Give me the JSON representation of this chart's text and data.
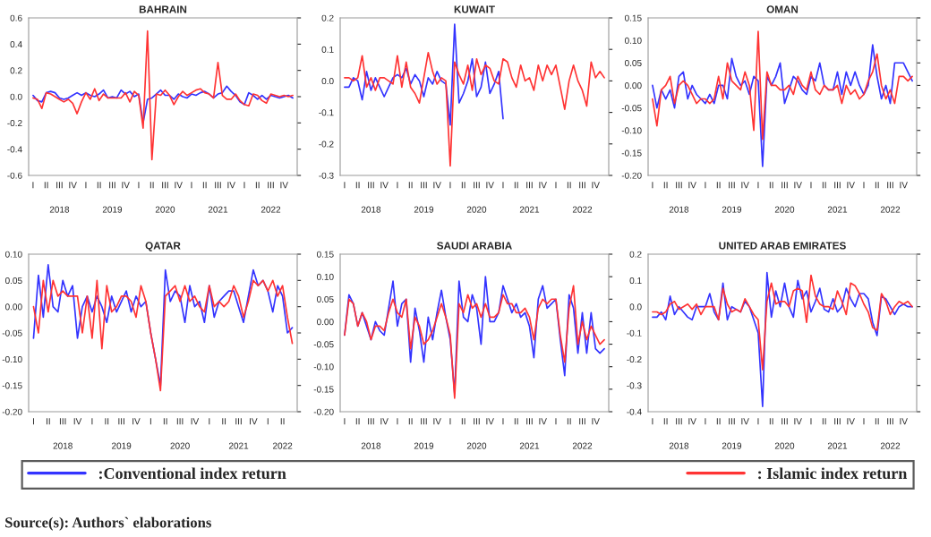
{
  "chart_data": [
    {
      "type": "line",
      "title": "BAHRAIN",
      "legend": "bottom",
      "categories": [
        "I",
        null,
        null,
        "II",
        null,
        null,
        "III\n\n2018",
        null,
        null,
        "IV",
        null,
        null,
        "I",
        null,
        null,
        "II",
        null,
        null,
        "III\n\n2019",
        null,
        null,
        "IV",
        null,
        null,
        "I",
        null,
        null,
        "II",
        null,
        null,
        "III\n\n2020",
        null,
        null,
        "IV",
        null,
        null,
        "I",
        null,
        null,
        "II",
        null,
        null,
        "III\n\n2021",
        null,
        null,
        "IV",
        null,
        null,
        "I",
        null,
        null,
        "II",
        null,
        null,
        "III\n\n2022",
        null,
        null,
        "IV",
        null,
        null
      ],
      "ylim": [
        -0.6,
        0.6
      ],
      "yticks": [
        {
          "value": -0.6,
          "label": "-0.6"
        },
        {
          "value": -0.4,
          "label": "-0.4"
        },
        {
          "value": -0.2,
          "label": "-0.2"
        },
        {
          "value": 0,
          "label": "0.0"
        },
        {
          "value": 0.2,
          "label": "0.2"
        },
        {
          "value": 0.4,
          "label": "0.4"
        },
        {
          "value": 0.6,
          "label": "0.6"
        }
      ],
      "series": [
        {
          "name": ":Conventional index return",
          "color": "#3333ff",
          "values": [
            0.01,
            -0.03,
            -0.04,
            0.03,
            0.04,
            0.03,
            -0.01,
            -0.02,
            -0.01,
            0.01,
            0.03,
            0.01,
            0.03,
            0.01,
            0.0,
            0.02,
            0.05,
            -0.01,
            0.0,
            -0.01,
            0.05,
            0.02,
            0.04,
            0.0,
            0.02,
            -0.2,
            -0.02,
            -0.01,
            0.02,
            0.05,
            0.01,
            0.01,
            -0.02,
            0.02,
            0.0,
            -0.01,
            0.02,
            0.01,
            0.03,
            0.04,
            0.02,
            -0.01,
            0.02,
            0.03,
            0.08,
            0.04,
            0.01,
            -0.04,
            -0.06,
            0.03,
            0.01,
            -0.02,
            0.01,
            -0.02,
            0.01,
            0.0,
            -0.01,
            0.0,
            0.01,
            -0.01
          ]
        },
        {
          "name": ": Islamic index return",
          "color": "#ff3333",
          "values": [
            -0.01,
            -0.02,
            -0.09,
            0.03,
            0.02,
            0.0,
            -0.02,
            -0.04,
            -0.02,
            -0.05,
            -0.13,
            -0.04,
            0.03,
            -0.02,
            0.06,
            -0.03,
            0.02,
            -0.01,
            -0.01,
            -0.01,
            -0.01,
            0.03,
            -0.04,
            0.04,
            0.01,
            -0.24,
            0.5,
            -0.48,
            0.02,
            0.01,
            0.05,
            0.01,
            -0.06,
            0.0,
            0.04,
            0.01,
            0.03,
            0.05,
            0.06,
            0.03,
            0.02,
            -0.01,
            0.26,
            0.01,
            -0.02,
            -0.02,
            0.02,
            -0.03,
            -0.06,
            -0.07,
            0.02,
            0.01,
            -0.03,
            -0.05,
            0.02,
            0.01,
            0.0,
            0.01,
            0.0,
            0.01
          ]
        }
      ]
    },
    {
      "type": "line",
      "title": "KUWAIT",
      "categories": [
        "I",
        null,
        null,
        "II",
        null,
        null,
        "III\n\n2018",
        null,
        null,
        "IV",
        null,
        null,
        "I",
        null,
        null,
        "II",
        null,
        null,
        "III\n\n2019",
        null,
        null,
        "IV",
        null,
        null,
        "I",
        null,
        null,
        "II",
        null,
        null,
        "III\n\n2020",
        null,
        null,
        "IV",
        null,
        null,
        "I",
        null,
        null,
        "II",
        null,
        null,
        "III\n\n2021",
        null,
        null,
        "IV",
        null,
        null,
        "I",
        null,
        null,
        "II",
        null,
        null,
        "III\n\n2022",
        null,
        null,
        "IV",
        null,
        null
      ],
      "ylim": [
        -0.3,
        0.2
      ],
      "yticks": [
        {
          "value": -0.3,
          "label": "-0.3"
        },
        {
          "value": -0.2,
          "label": "-0.2"
        },
        {
          "value": -0.1,
          "label": "-0.1"
        },
        {
          "value": 0,
          "label": "0.0"
        },
        {
          "value": 0.1,
          "label": "0.1"
        },
        {
          "value": 0.2,
          "label": "0.2"
        }
      ],
      "series": [
        {
          "color": "#3333ff",
          "values": [
            -0.02,
            -0.02,
            0.01,
            0.0,
            -0.06,
            0.03,
            -0.03,
            0.01,
            -0.02,
            -0.05,
            -0.02,
            0.01,
            0.02,
            0.01,
            0.04,
            -0.01,
            0.02,
            0.0,
            -0.05,
            0.01,
            -0.01,
            0.03,
            0.0,
            -0.01,
            -0.14,
            0.18,
            -0.07,
            -0.04,
            0.0,
            0.07,
            -0.05,
            -0.02,
            0.06,
            -0.04,
            -0.01,
            0.03,
            -0.12,
            null,
            null,
            null,
            null,
            null,
            null,
            null,
            null,
            null,
            null,
            null,
            null,
            null,
            null,
            null,
            null,
            null,
            null,
            null,
            null,
            null,
            null,
            null
          ]
        },
        {
          "color": "#ff3333",
          "values": [
            0.01,
            0.01,
            0.0,
            0.01,
            0.08,
            -0.02,
            0.01,
            -0.03,
            0.01,
            0.01,
            0.0,
            -0.01,
            0.08,
            -0.02,
            0.06,
            -0.02,
            -0.04,
            -0.07,
            0.01,
            0.09,
            0.03,
            -0.01,
            0.01,
            0.0,
            -0.27,
            0.06,
            0.02,
            -0.01,
            0.05,
            -0.03,
            0.07,
            0.02,
            0.05,
            0.04,
            0.0,
            -0.01,
            0.07,
            0.06,
            0.01,
            -0.02,
            0.05,
            0.0,
            0.01,
            -0.03,
            0.05,
            0.0,
            0.05,
            0.02,
            0.05,
            -0.02,
            -0.09,
            0.0,
            0.05,
            0.0,
            -0.03,
            -0.08,
            0.06,
            0.01,
            0.03,
            0.01
          ]
        }
      ]
    },
    {
      "type": "line",
      "title": "OMAN",
      "categories": [
        "I",
        null,
        null,
        "II",
        null,
        null,
        "III\n\n2018",
        null,
        null,
        "IV",
        null,
        null,
        "I",
        null,
        null,
        "II",
        null,
        null,
        "III\n\n2019",
        null,
        null,
        "IV",
        null,
        null,
        "I",
        null,
        null,
        "II",
        null,
        null,
        "III\n\n2020",
        null,
        null,
        "IV",
        null,
        null,
        "I",
        null,
        null,
        "II",
        null,
        null,
        "III\n\n2021",
        null,
        null,
        "IV",
        null,
        null,
        "I",
        null,
        null,
        "II",
        null,
        null,
        "III\n\n2022",
        null,
        null,
        "IV",
        null,
        null
      ],
      "ylim": [
        -0.2,
        0.15
      ],
      "yticks": [
        {
          "value": -0.2,
          "label": "-0.20"
        },
        {
          "value": -0.15,
          "label": "-0.15"
        },
        {
          "value": -0.1,
          "label": "-0.10"
        },
        {
          "value": -0.05,
          "label": "-0.05"
        },
        {
          "value": 0,
          "label": "0.00"
        },
        {
          "value": 0.05,
          "label": "0.05"
        },
        {
          "value": 0.1,
          "label": "0.10"
        },
        {
          "value": 0.15,
          "label": "0.15"
        }
      ],
      "series": [
        {
          "color": "#3333ff",
          "values": [
            0.0,
            -0.05,
            -0.01,
            -0.03,
            -0.01,
            -0.05,
            0.02,
            0.03,
            -0.03,
            0.0,
            -0.02,
            -0.03,
            -0.04,
            -0.02,
            -0.04,
            0.0,
            0.0,
            -0.03,
            0.06,
            0.02,
            0.0,
            0.01,
            -0.02,
            0.02,
            0.01,
            -0.18,
            0.02,
            0.0,
            0.02,
            0.05,
            -0.04,
            -0.01,
            0.02,
            0.01,
            -0.01,
            -0.02,
            0.02,
            0.01,
            0.05,
            0.0,
            -0.01,
            -0.01,
            0.03,
            -0.02,
            0.03,
            0.0,
            0.03,
            0.0,
            -0.02,
            0.0,
            0.09,
            0.02,
            -0.03,
            0.0,
            -0.04,
            0.05,
            0.05,
            0.05,
            0.03,
            0.01
          ]
        },
        {
          "color": "#ff3333",
          "values": [
            -0.03,
            -0.09,
            -0.01,
            0.0,
            0.02,
            -0.04,
            0.0,
            0.01,
            0.0,
            -0.02,
            -0.04,
            -0.03,
            -0.03,
            -0.04,
            -0.03,
            0.02,
            -0.03,
            0.05,
            0.01,
            0.0,
            -0.01,
            0.03,
            0.0,
            -0.1,
            0.12,
            -0.12,
            0.03,
            0.0,
            0.0,
            -0.01,
            -0.01,
            0.0,
            -0.02,
            0.02,
            0.0,
            -0.01,
            0.03,
            -0.01,
            -0.02,
            0.0,
            -0.01,
            -0.01,
            0.0,
            -0.04,
            0.0,
            -0.02,
            -0.01,
            -0.03,
            -0.02,
            0.01,
            0.03,
            0.07,
            0.0,
            -0.03,
            -0.01,
            -0.04,
            0.02,
            0.02,
            0.01,
            0.02
          ]
        }
      ]
    },
    {
      "type": "line",
      "title": "QATAR",
      "categories": [
        "I",
        null,
        null,
        "II",
        null,
        null,
        "III\n\n2018",
        null,
        null,
        "IV",
        null,
        null,
        "I",
        null,
        null,
        "II",
        null,
        null,
        "III\n\n2019",
        null,
        null,
        "IV",
        null,
        null,
        "I",
        null,
        null,
        "II",
        null,
        null,
        "III\n\n2020",
        null,
        null,
        "IV",
        null,
        null,
        "I",
        null,
        null,
        "II",
        null,
        null,
        "III\n\n2021",
        null,
        null,
        "IV",
        null,
        null,
        "I",
        null,
        null,
        "II\n\n2022",
        null,
        null
      ],
      "ylim": [
        -0.2,
        0.1
      ],
      "yticks": [
        {
          "value": -0.2,
          "label": "-0.20"
        },
        {
          "value": -0.15,
          "label": "-0.15"
        },
        {
          "value": -0.1,
          "label": "-0.10"
        },
        {
          "value": -0.05,
          "label": "-0.05"
        },
        {
          "value": 0,
          "label": "0.00"
        },
        {
          "value": 0.05,
          "label": "0.05"
        },
        {
          "value": 0.1,
          "label": "0.10"
        }
      ],
      "series": [
        {
          "color": "#3333ff",
          "values": [
            -0.06,
            0.06,
            -0.02,
            0.08,
            0.0,
            -0.01,
            0.05,
            0.02,
            0.04,
            -0.06,
            0.0,
            0.02,
            -0.01,
            0.02,
            0.0,
            -0.03,
            0.02,
            -0.01,
            0.01,
            0.03,
            -0.01,
            0.02,
            0.0,
            0.01,
            -0.05,
            -0.1,
            -0.15,
            0.07,
            0.01,
            0.03,
            0.02,
            -0.03,
            0.04,
            0.0,
            0.01,
            -0.03,
            0.04,
            -0.02,
            0.01,
            0.02,
            0.03,
            0.03,
            0.0,
            -0.03,
            0.02,
            0.07,
            0.04,
            0.05,
            0.03,
            -0.01,
            0.04,
            0.02,
            -0.05,
            -0.04
          ]
        },
        {
          "color": "#ff3333",
          "values": [
            0.0,
            -0.05,
            0.05,
            -0.01,
            0.05,
            0.02,
            0.03,
            0.02,
            0.02,
            0.02,
            -0.05,
            0.02,
            -0.06,
            0.05,
            -0.08,
            0.04,
            -0.01,
            0.0,
            0.02,
            0.02,
            0.01,
            -0.02,
            0.04,
            0.01,
            -0.05,
            -0.1,
            -0.16,
            0.02,
            0.03,
            0.04,
            0.01,
            0.04,
            0.01,
            0.02,
            0.0,
            -0.01,
            0.04,
            0.0,
            0.01,
            0.0,
            0.01,
            0.04,
            0.02,
            -0.02,
            0.01,
            0.05,
            0.04,
            0.05,
            0.03,
            0.05,
            0.02,
            0.04,
            -0.02,
            -0.07
          ]
        }
      ]
    },
    {
      "type": "line",
      "title": "SAUDI ARABIA",
      "categories": [
        "I",
        null,
        null,
        "II",
        null,
        null,
        "III\n\n2018",
        null,
        null,
        "IV",
        null,
        null,
        "I",
        null,
        null,
        "II",
        null,
        null,
        "III\n\n2019",
        null,
        null,
        "IV",
        null,
        null,
        "I",
        null,
        null,
        "II",
        null,
        null,
        "III\n\n2020",
        null,
        null,
        "IV",
        null,
        null,
        "I",
        null,
        null,
        "II",
        null,
        null,
        "III\n\n2021",
        null,
        null,
        "IV",
        null,
        null,
        "I",
        null,
        null,
        "II",
        null,
        null,
        "III\n\n2022",
        null,
        null,
        "IV",
        null,
        null
      ],
      "ylim": [
        -0.2,
        0.15
      ],
      "yticks": [
        {
          "value": -0.2,
          "label": "-0.20"
        },
        {
          "value": -0.15,
          "label": "-0.15"
        },
        {
          "value": -0.1,
          "label": "-0.10"
        },
        {
          "value": -0.05,
          "label": "-0.05"
        },
        {
          "value": 0,
          "label": "0.00"
        },
        {
          "value": 0.05,
          "label": "0.05"
        },
        {
          "value": 0.1,
          "label": "0.10"
        },
        {
          "value": 0.15,
          "label": "0.15"
        }
      ],
      "series": [
        {
          "color": "#3333ff",
          "values": [
            -0.03,
            0.06,
            0.04,
            -0.01,
            0.02,
            -0.01,
            -0.04,
            0.0,
            -0.02,
            -0.03,
            0.03,
            0.09,
            -0.01,
            0.04,
            0.05,
            -0.09,
            0.03,
            -0.02,
            -0.09,
            0.01,
            -0.04,
            0.02,
            0.07,
            0.01,
            -0.04,
            -0.16,
            0.09,
            0.01,
            0.0,
            0.06,
            0.03,
            -0.05,
            0.1,
            0.0,
            0.0,
            0.02,
            0.08,
            0.05,
            0.02,
            0.04,
            0.01,
            0.02,
            -0.01,
            -0.08,
            0.05,
            0.08,
            0.03,
            0.04,
            0.05,
            -0.04,
            -0.12,
            0.06,
            0.03,
            -0.07,
            0.02,
            -0.07,
            0.02,
            -0.06,
            -0.07,
            -0.06
          ]
        },
        {
          "color": "#ff3333",
          "values": [
            -0.03,
            0.05,
            0.04,
            -0.01,
            0.02,
            0.0,
            -0.04,
            -0.01,
            -0.01,
            -0.02,
            0.02,
            0.05,
            0.02,
            0.01,
            0.05,
            -0.06,
            0.01,
            -0.01,
            -0.05,
            -0.04,
            -0.02,
            0.01,
            0.04,
            0.01,
            -0.03,
            -0.17,
            0.04,
            0.02,
            0.06,
            0.03,
            0.04,
            0.01,
            0.04,
            0.01,
            0.01,
            0.02,
            0.06,
            0.04,
            0.04,
            0.02,
            0.02,
            0.03,
            0.01,
            -0.04,
            0.03,
            0.05,
            0.04,
            0.05,
            0.05,
            -0.03,
            -0.09,
            0.03,
            0.08,
            -0.05,
            0.0,
            -0.04,
            -0.01,
            -0.03,
            -0.05,
            -0.04
          ]
        }
      ]
    },
    {
      "type": "line",
      "title": "UNITED ARAB EMIRATES",
      "annotations": [
        "Source(s): Authors` elaborations"
      ],
      "categories": [
        "I",
        null,
        null,
        "II",
        null,
        null,
        "III\n\n2018",
        null,
        null,
        "IV",
        null,
        null,
        "I",
        null,
        null,
        "II",
        null,
        null,
        "III\n\n2019",
        null,
        null,
        "IV",
        null,
        null,
        "I",
        null,
        null,
        "II",
        null,
        null,
        "III\n\n2020",
        null,
        null,
        "IV",
        null,
        null,
        "I",
        null,
        null,
        "II",
        null,
        null,
        "III\n\n2021",
        null,
        null,
        "IV",
        null,
        null,
        "I",
        null,
        null,
        "II",
        null,
        null,
        "III\n\n2022",
        null,
        null,
        "IV",
        null,
        null
      ],
      "ylim": [
        -0.4,
        0.2
      ],
      "yticks": [
        {
          "value": -0.4,
          "label": "-0.4"
        },
        {
          "value": -0.3,
          "label": "-0.3"
        },
        {
          "value": -0.2,
          "label": "-0.2"
        },
        {
          "value": -0.1,
          "label": "-0.1"
        },
        {
          "value": 0,
          "label": "0.0"
        },
        {
          "value": 0.1,
          "label": "0.1"
        },
        {
          "value": 0.2,
          "label": "0.2"
        }
      ],
      "series": [
        {
          "color": "#3333ff",
          "values": [
            -0.04,
            -0.04,
            -0.02,
            -0.05,
            0.04,
            -0.03,
            0.0,
            -0.02,
            -0.04,
            -0.05,
            0.0,
            0.0,
            0.0,
            0.05,
            -0.02,
            -0.05,
            0.09,
            -0.05,
            0.0,
            -0.01,
            -0.02,
            0.02,
            0.0,
            -0.05,
            -0.1,
            -0.38,
            0.13,
            -0.04,
            0.06,
            0.0,
            0.09,
            0.0,
            -0.04,
            0.1,
            0.03,
            0.06,
            -0.02,
            0.02,
            0.07,
            -0.01,
            -0.02,
            0.03,
            -0.02,
            0.0,
            0.07,
            0.03,
            0.0,
            0.05,
            0.05,
            0.03,
            -0.06,
            -0.11,
            0.04,
            0.03,
            0.0,
            -0.03,
            0.0,
            0.01,
            0.0,
            0.0
          ]
        },
        {
          "color": "#ff3333",
          "values": [
            -0.02,
            -0.02,
            -0.03,
            -0.02,
            0.01,
            0.02,
            -0.01,
            0.0,
            0.01,
            -0.01,
            0.01,
            -0.03,
            0.0,
            0.0,
            0.0,
            -0.05,
            0.07,
            0.01,
            -0.02,
            -0.01,
            -0.02,
            0.03,
            0.0,
            -0.03,
            -0.05,
            -0.24,
            0.02,
            0.09,
            0.01,
            0.02,
            0.02,
            0.0,
            0.06,
            0.07,
            0.06,
            -0.06,
            0.12,
            0.04,
            0.01,
            0.0,
            0.0,
            -0.01,
            0.06,
            0.02,
            -0.03,
            0.09,
            0.08,
            0.05,
            0.01,
            -0.02,
            -0.08,
            -0.09,
            0.05,
            0.02,
            -0.03,
            0.0,
            0.02,
            0.01,
            0.02,
            0.0
          ]
        }
      ]
    }
  ]
}
